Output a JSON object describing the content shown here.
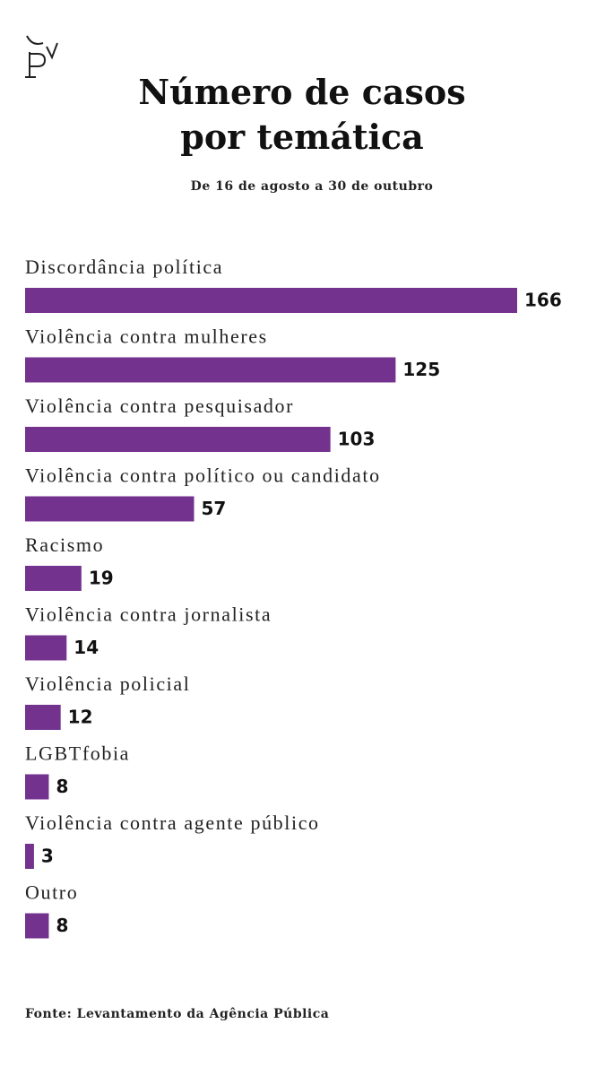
{
  "chart_data": {
    "type": "bar",
    "orientation": "horizontal",
    "title": "Número de casos por temática",
    "subtitle": "De 16 de agosto a 30 de outubro",
    "source": "Fonte: Levantamento da Agência Pública",
    "categories": [
      "Discordância política",
      "Violência contra mulheres",
      "Violência contra pesquisador",
      "Violência contra político ou candidato",
      "Racismo",
      "Violência contra jornalista",
      "Violência policial",
      "LGBTfobia",
      "Violência contra agente público",
      "Outro"
    ],
    "values": [
      166,
      125,
      103,
      57,
      19,
      14,
      12,
      8,
      3,
      8
    ],
    "color": "#74328f"
  }
}
